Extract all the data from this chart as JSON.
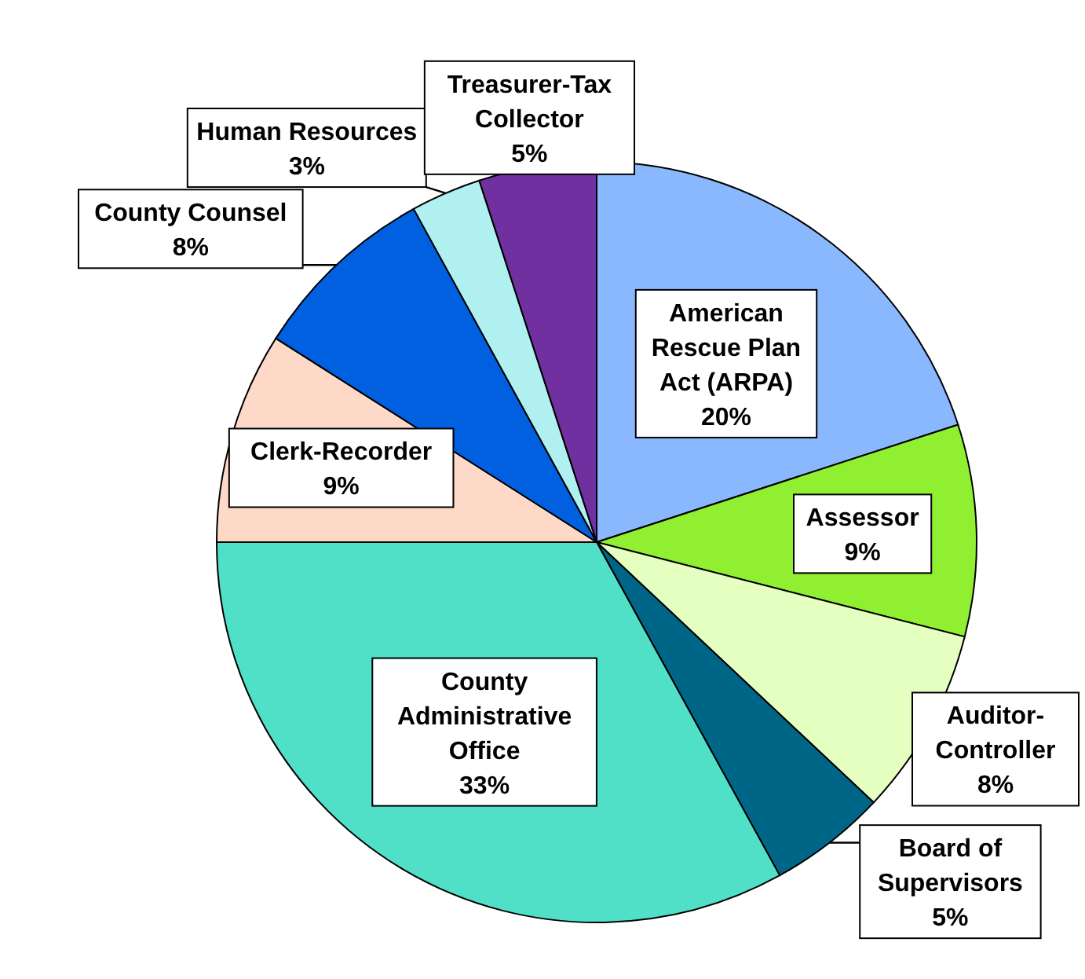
{
  "chart_data": {
    "type": "pie",
    "categories": [
      "American Rescue Plan Act (ARPA)",
      "Assessor",
      "Auditor-Controller",
      "Board of Supervisors",
      "County Administrative Office",
      "Clerk-Recorder",
      "County Counsel",
      "Human Resources",
      "Treasurer-Tax Collector"
    ],
    "values": [
      20,
      9,
      8,
      5,
      33,
      9,
      8,
      3,
      5
    ],
    "value_labels": [
      "20%",
      "9%",
      "8%",
      "5%",
      "33%",
      "9%",
      "8%",
      "3%",
      "5%"
    ],
    "colors": [
      "#8ab8ff",
      "#8fef30",
      "#e5ffc0",
      "#006688",
      "#50e0c8",
      "#ffd9c8",
      "#0060e0",
      "#b0f0f0",
      "#7030a0"
    ]
  }
}
